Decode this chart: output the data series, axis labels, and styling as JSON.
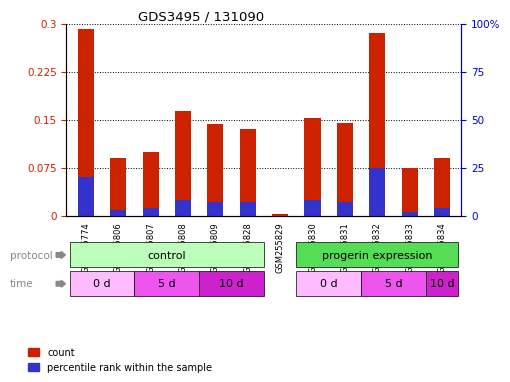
{
  "title": "GDS3495 / 131090",
  "samples": [
    "GSM255774",
    "GSM255806",
    "GSM255807",
    "GSM255808",
    "GSM255809",
    "GSM255828",
    "GSM255829",
    "GSM255830",
    "GSM255831",
    "GSM255832",
    "GSM255833",
    "GSM255834"
  ],
  "count_values": [
    0.291,
    0.09,
    0.1,
    0.163,
    0.143,
    0.135,
    0.002,
    0.153,
    0.145,
    0.285,
    0.075,
    0.09
  ],
  "percentile_values": [
    20,
    3,
    4,
    8,
    7,
    7,
    0,
    8,
    7,
    25,
    2,
    4
  ],
  "left_ylim": [
    0,
    0.3
  ],
  "right_ylim": [
    0,
    100
  ],
  "left_yticks": [
    0,
    0.075,
    0.15,
    0.225,
    0.3
  ],
  "right_yticks": [
    0,
    25,
    50,
    75,
    100
  ],
  "left_yticklabels": [
    "0",
    "0.075",
    "0.15",
    "0.225",
    "0.3"
  ],
  "right_yticklabels": [
    "0",
    "25",
    "50",
    "75",
    "100%"
  ],
  "bar_color_red": "#cc2200",
  "bar_color_blue": "#3333cc",
  "bar_width": 0.5,
  "protocol_color_light": "#bbffbb",
  "protocol_color_dark": "#55dd55",
  "time_color_0d": "#ffbbff",
  "time_color_5d": "#ee55ee",
  "time_color_10d": "#cc22cc",
  "grid_color": "black",
  "tick_color_left": "#cc2200",
  "tick_color_right": "#0000cc",
  "label_color": "#888888"
}
